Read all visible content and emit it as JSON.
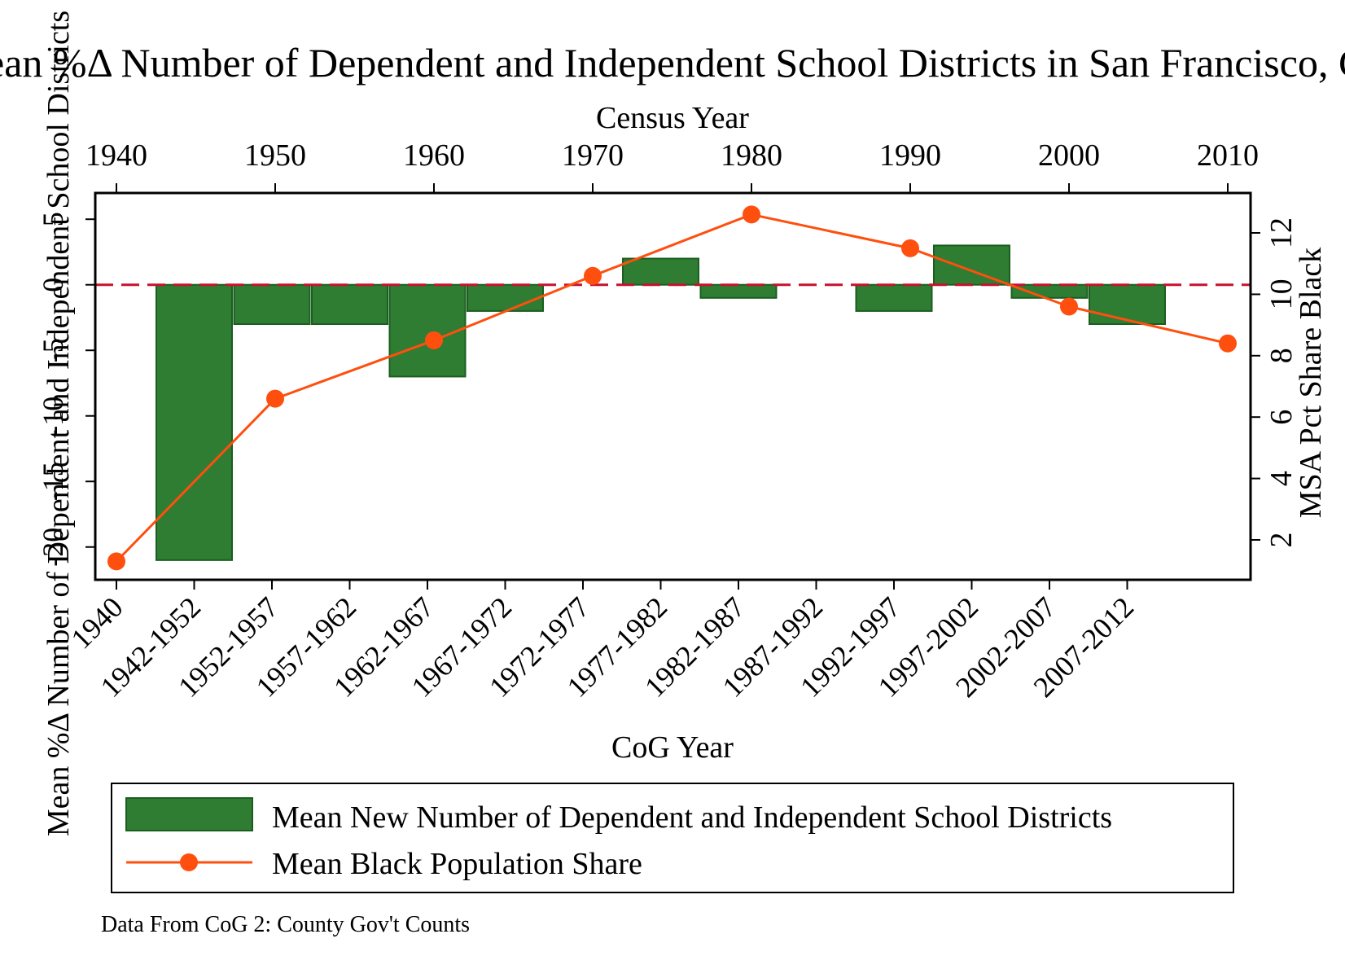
{
  "chart_data": {
    "type": "bar",
    "title": "Mean %Δ Number of Dependent and Independent School Districts in San Francisco, CA",
    "top_axis_label": "Census Year",
    "top_ticks": [
      "1940",
      "1950",
      "1960",
      "1970",
      "1980",
      "1990",
      "2000",
      "2010"
    ],
    "xlabel": "CoG Year",
    "categories": [
      "1940",
      "1942-1952",
      "1952-1957",
      "1957-1962",
      "1962-1967",
      "1967-1972",
      "1972-1977",
      "1977-1982",
      "1982-1987",
      "1987-1992",
      "1992-1997",
      "1997-2002",
      "2002-2007",
      "2007-2012"
    ],
    "ylabel_left": "Mean %Δ Number of Dependent and Independent School Districts",
    "ylabel_left_ticks": [
      "-20",
      "-15",
      "-10",
      "-5",
      "0",
      "5"
    ],
    "ylabel_right": "MSA Pct Share Black",
    "right_ticks": [
      "2",
      "4",
      "6",
      "8",
      "10",
      "12"
    ],
    "ylim_left": [
      -22.5,
      7
    ],
    "ylim_right": [
      0.7,
      13.3
    ],
    "grid": false,
    "reference_line": 0,
    "legend_position": "bottom",
    "series": [
      {
        "name": "Mean New Number of Dependent and Independent School Districts",
        "kind": "bar",
        "axis": "left",
        "color": "#2e7d32",
        "values": [
          null,
          -21,
          -3,
          -3,
          -7,
          -2,
          null,
          2,
          -1,
          null,
          -2,
          3,
          -1,
          -3
        ]
      },
      {
        "name": "Mean Black Population Share",
        "kind": "line",
        "axis": "right",
        "color": "#ff4f0f",
        "points": [
          {
            "x": 1940,
            "y": 1.3
          },
          {
            "x": 1950,
            "y": 6.6
          },
          {
            "x": 1960,
            "y": 8.5
          },
          {
            "x": 1970,
            "y": 10.6
          },
          {
            "x": 1980,
            "y": 12.6
          },
          {
            "x": 1990,
            "y": 11.5
          },
          {
            "x": 2000,
            "y": 9.6
          },
          {
            "x": 2010,
            "y": 8.4
          }
        ]
      }
    ],
    "note": "Data From CoG 2: County Gov't Counts"
  }
}
